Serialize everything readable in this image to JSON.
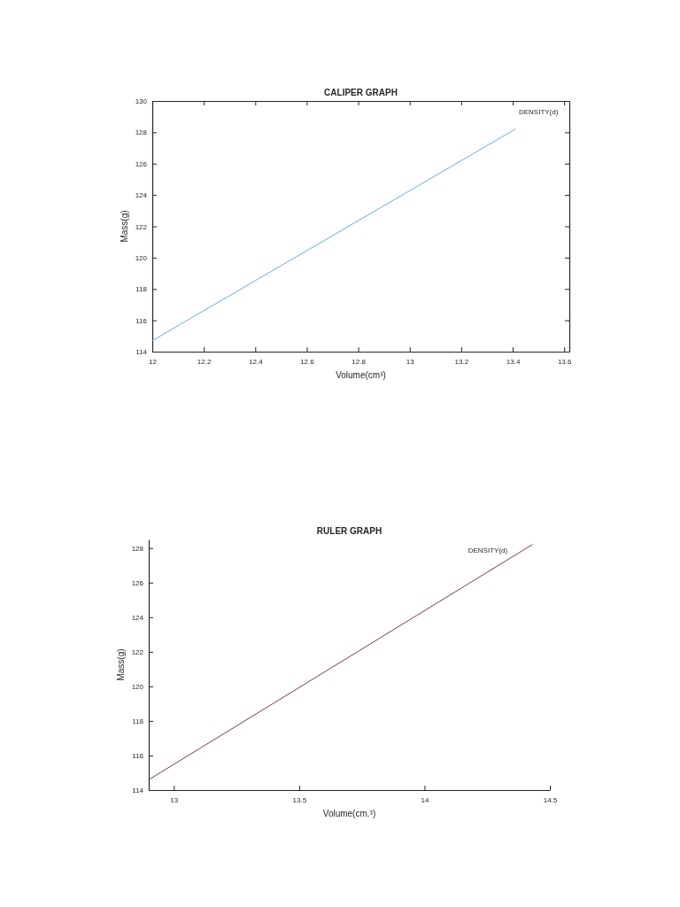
{
  "chart_data": [
    {
      "type": "line",
      "title": "CALIPER GRAPH",
      "xlabel": "Volume(cm³)",
      "ylabel": "Mass(g)",
      "series": [
        {
          "name": "DENSITY(d)",
          "color": "#62aee0",
          "x": [
            12,
            13.41
          ],
          "values": [
            114.7,
            128.2
          ]
        }
      ],
      "xlim": [
        12,
        13.62
      ],
      "ylim": [
        114,
        130
      ],
      "xticks": [
        12,
        12.2,
        12.4,
        12.6,
        12.8,
        13,
        13.2,
        13.4,
        13.6
      ],
      "yticks": [
        114,
        116,
        118,
        120,
        122,
        124,
        126,
        128,
        130
      ]
    },
    {
      "type": "line",
      "title": "RULER GRAPH",
      "xlabel": "Volume(cm.³)",
      "ylabel": "Mass(g)",
      "series": [
        {
          "name": "DENSITY(d)",
          "color": "#7a3e36",
          "x": [
            12.9,
            14.43
          ],
          "values": [
            114.6,
            128.2
          ]
        }
      ],
      "xlim": [
        12.9,
        14.5
      ],
      "ylim": [
        114,
        128.5
      ],
      "xticks": [
        13,
        13.5,
        14,
        14.5
      ],
      "yticks": [
        114,
        116,
        118,
        120,
        122,
        124,
        126,
        128
      ]
    }
  ]
}
